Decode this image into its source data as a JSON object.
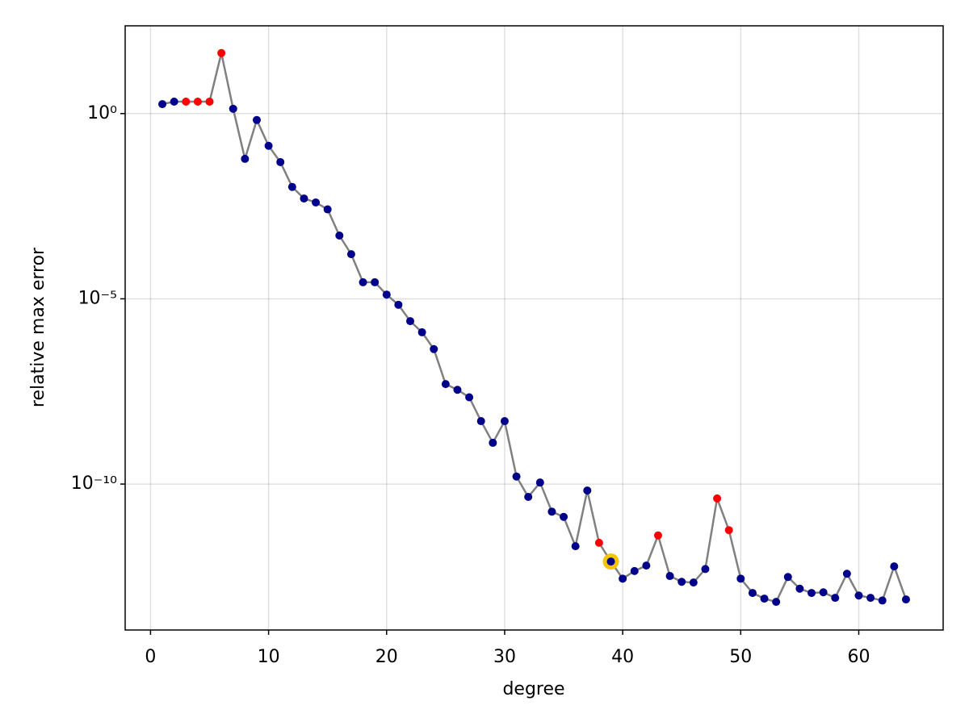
{
  "chart_data": {
    "type": "line",
    "xlabel": "degree",
    "ylabel": "relative max error",
    "x": [
      1,
      2,
      3,
      4,
      5,
      6,
      7,
      8,
      9,
      10,
      11,
      12,
      13,
      14,
      15,
      16,
      17,
      18,
      19,
      20,
      21,
      22,
      23,
      24,
      25,
      26,
      27,
      28,
      29,
      30,
      31,
      32,
      33,
      34,
      35,
      36,
      37,
      38,
      39,
      40,
      41,
      42,
      43,
      44,
      45,
      46,
      47,
      48,
      49,
      50,
      51,
      52,
      53,
      54,
      55,
      56,
      57,
      58,
      59,
      60,
      61,
      62,
      63,
      64
    ],
    "series": [
      {
        "color": "#808080",
        "values": [
          1.8,
          2.1,
          2.1,
          2.1,
          2.1,
          43,
          1.35,
          0.06,
          0.67,
          0.135,
          0.049,
          0.0105,
          0.0051,
          0.004,
          0.0026,
          0.00051,
          0.00016,
          2.8e-05,
          2.8e-05,
          1.3e-05,
          6.9e-06,
          2.5e-06,
          1.25e-06,
          4.4e-07,
          5e-08,
          3.5e-08,
          2.2e-08,
          5e-09,
          1.3e-09,
          5e-09,
          1.6e-10,
          4.5e-11,
          1.1e-10,
          1.8e-11,
          1.3e-11,
          2.1e-12,
          6.7e-11,
          2.6e-12,
          8.1e-13,
          2.8e-13,
          4.5e-13,
          6.3e-13,
          4.1e-12,
          3.3e-13,
          2.3e-13,
          2.2e-13,
          5.1e-13,
          4.1e-11,
          5.7e-12,
          2.8e-13,
          1.15e-13,
          8.1e-14,
          6.6e-14,
          3.1e-13,
          1.5e-13,
          1.15e-13,
          1.2e-13,
          8.5e-14,
          3.8e-13,
          9.8e-14,
          8.5e-14,
          7.2e-14,
          6e-13,
          7.7e-14
        ],
        "point_colors": [
          "#00008b",
          "#00008b",
          "#ff0000",
          "#ff0000",
          "#ff0000",
          "#ff0000",
          "#00008b",
          "#00008b",
          "#00008b",
          "#00008b",
          "#00008b",
          "#00008b",
          "#00008b",
          "#00008b",
          "#00008b",
          "#00008b",
          "#00008b",
          "#00008b",
          "#00008b",
          "#00008b",
          "#00008b",
          "#00008b",
          "#00008b",
          "#00008b",
          "#00008b",
          "#00008b",
          "#00008b",
          "#00008b",
          "#00008b",
          "#00008b",
          "#00008b",
          "#00008b",
          "#00008b",
          "#00008b",
          "#00008b",
          "#00008b",
          "#00008b",
          "#ff0000",
          "#00008b",
          "#00008b",
          "#00008b",
          "#00008b",
          "#ff0000",
          "#00008b",
          "#00008b",
          "#00008b",
          "#00008b",
          "#ff0000",
          "#ff0000",
          "#00008b",
          "#00008b",
          "#00008b",
          "#00008b",
          "#00008b",
          "#00008b",
          "#00008b",
          "#00008b",
          "#00008b",
          "#00008b",
          "#00008b",
          "#00008b",
          "#00008b",
          "#00008b",
          "#00008b"
        ]
      }
    ],
    "highlight_x": 39,
    "highlight_color": "#f5c400",
    "log_y": true,
    "grid": true,
    "xlim": [
      -2.15,
      67.15
    ],
    "xticks": [
      0,
      10,
      20,
      30,
      40,
      50,
      60
    ],
    "ylim": [
      1.15e-14,
      234
    ],
    "yticks": [
      {
        "value": 1,
        "label": "10⁰"
      },
      {
        "value": 1e-05,
        "label": "10⁻⁵"
      },
      {
        "value": 1e-10,
        "label": "10⁻¹⁰"
      }
    ]
  }
}
